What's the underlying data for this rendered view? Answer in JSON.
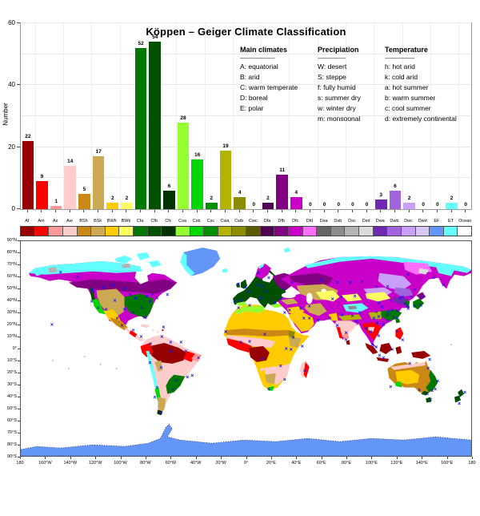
{
  "title": "Köppen – Geiger Climate Classification",
  "chart_data": {
    "type": "bar",
    "title": "Köppen – Geiger Climate Classification",
    "xlabel": "",
    "ylabel": "Number",
    "ylim": [
      0,
      60
    ],
    "yticks": [
      0,
      20,
      40,
      60
    ],
    "grid": true,
    "categories": [
      "Af",
      "Am",
      "As",
      "Aw",
      "BSh",
      "BSk",
      "BWh",
      "BWk",
      "Cfa",
      "Cfb",
      "Cfc",
      "Csa",
      "Csb",
      "Csc",
      "Cwa",
      "Cwb",
      "Cwc",
      "Dfa",
      "Dfb",
      "Dfc",
      "Dfd",
      "Dsa",
      "Dsb",
      "Dsc",
      "Dsd",
      "Dwa",
      "Dwb",
      "Dwc",
      "Dwd",
      "EF",
      "ET",
      "Ocean"
    ],
    "values": [
      22,
      9,
      1,
      14,
      5,
      17,
      2,
      2,
      52,
      54,
      6,
      28,
      16,
      2,
      19,
      4,
      0,
      2,
      11,
      4,
      0,
      0,
      0,
      0,
      0,
      3,
      6,
      2,
      0,
      0,
      2,
      0
    ],
    "colors": [
      "#960000",
      "#FF0000",
      "#FF9999",
      "#FFCCCC",
      "#CC8814",
      "#CCAA54",
      "#FFCC00",
      "#FFFF64",
      "#007800",
      "#005000",
      "#003200",
      "#96FF32",
      "#00D700",
      "#009000",
      "#B4B400",
      "#8C8C00",
      "#5A5A00",
      "#500050",
      "#820082",
      "#C800C8",
      "#FF6EFF",
      "#666666",
      "#8C8C8C",
      "#B4B4B4",
      "#DCDCDC",
      "#6E28B4",
      "#A064DC",
      "#C8A0FA",
      "#D8C8FA",
      "#6496FA",
      "#64FFFF",
      "#FFFFFF"
    ]
  },
  "legend": {
    "columns": [
      {
        "header": "Main climates",
        "divider": "--------------------",
        "items": [
          "A: equatorial",
          "B: arid",
          "C: warm temperate",
          "D: boreal",
          "E: polar"
        ]
      },
      {
        "header": "Precipiation",
        "divider": "----------------",
        "items": [
          "W: desert",
          "S: steppe",
          "f: fully humid",
          "s: summer dry",
          "w: winter dry",
          "m: monsoonal"
        ]
      },
      {
        "header": "Temperature",
        "divider": "-----------------",
        "items": [
          "h: hot arid",
          "k: cold arid",
          "a: hot summer",
          "b: warm summer",
          "c: cool summer",
          "d: extremely continental"
        ]
      }
    ]
  },
  "map": {
    "ocean_color": "#FFFFFF",
    "marker_color": "#1414F0",
    "marker_glyph": "×",
    "lat_labels": [
      "90°N",
      "80°N",
      "70°N",
      "60°N",
      "50°N",
      "40°N",
      "30°N",
      "20°N",
      "10°N",
      "0°",
      "10°S",
      "20°S",
      "30°S",
      "40°S",
      "50°S",
      "60°S",
      "70°S",
      "80°S",
      "90°S"
    ],
    "lon_labels": [
      "180",
      "160°W",
      "140°W",
      "120°W",
      "100°W",
      "80°W",
      "60°W",
      "40°W",
      "20°W",
      "0°",
      "20°E",
      "40°E",
      "60°E",
      "80°E",
      "100°E",
      "120°E",
      "140°E",
      "160°E",
      "180"
    ],
    "stations": [
      [
        91,
        64
      ],
      [
        89,
        76
      ],
      [
        97,
        84
      ],
      [
        107,
        86
      ],
      [
        118,
        75
      ],
      [
        130,
        86
      ],
      [
        141,
        90
      ],
      [
        151,
        84
      ],
      [
        155,
        96
      ],
      [
        162,
        76
      ],
      [
        171,
        72
      ],
      [
        158,
        69
      ],
      [
        144,
        72
      ],
      [
        137,
        67
      ],
      [
        104,
        58
      ],
      [
        90,
        61
      ],
      [
        116,
        55
      ],
      [
        130,
        60
      ],
      [
        165,
        67
      ],
      [
        184,
        67
      ],
      [
        50,
        39
      ],
      [
        71,
        45
      ],
      [
        39,
        105
      ],
      [
        127,
        106
      ],
      [
        121,
        97
      ],
      [
        141,
        112
      ],
      [
        151,
        120
      ],
      [
        179,
        108
      ],
      [
        163,
        129
      ],
      [
        177,
        120
      ],
      [
        188,
        127
      ],
      [
        201,
        127
      ],
      [
        188,
        139
      ],
      [
        207,
        138
      ],
      [
        223,
        147
      ],
      [
        215,
        169
      ],
      [
        209,
        171
      ],
      [
        191,
        186
      ],
      [
        176,
        159
      ],
      [
        162,
        153
      ],
      [
        171,
        184
      ],
      [
        168,
        196
      ],
      [
        176,
        216
      ],
      [
        195,
        175
      ],
      [
        268,
        76
      ],
      [
        276,
        75
      ],
      [
        286,
        63
      ],
      [
        282,
        58
      ],
      [
        273,
        54
      ],
      [
        298,
        55
      ],
      [
        303,
        57
      ],
      [
        308,
        63
      ],
      [
        301,
        72
      ],
      [
        319,
        78
      ],
      [
        326,
        73
      ],
      [
        340,
        52
      ],
      [
        330,
        60
      ],
      [
        311,
        46
      ],
      [
        298,
        40
      ],
      [
        257,
        114
      ],
      [
        276,
        127
      ],
      [
        287,
        126
      ],
      [
        306,
        117
      ],
      [
        333,
        135
      ],
      [
        342,
        121
      ],
      [
        353,
        132
      ],
      [
        339,
        136
      ],
      [
        326,
        157
      ],
      [
        331,
        174
      ],
      [
        311,
        186
      ],
      [
        356,
        163
      ],
      [
        303,
        148
      ],
      [
        273,
        84
      ],
      [
        287,
        81
      ],
      [
        331,
        90
      ],
      [
        337,
        87
      ],
      [
        351,
        85
      ],
      [
        362,
        97
      ],
      [
        355,
        97
      ],
      [
        373,
        100
      ],
      [
        362,
        82
      ],
      [
        391,
        73
      ],
      [
        402,
        70
      ],
      [
        388,
        97
      ],
      [
        403,
        93
      ],
      [
        397,
        106
      ],
      [
        408,
        115
      ],
      [
        421,
        101
      ],
      [
        416,
        94
      ],
      [
        408,
        124
      ],
      [
        377,
        49
      ],
      [
        397,
        52
      ],
      [
        413,
        52
      ],
      [
        428,
        51
      ],
      [
        446,
        57
      ],
      [
        460,
        57
      ],
      [
        486,
        42
      ],
      [
        494,
        61
      ],
      [
        490,
        70
      ],
      [
        530,
        55
      ],
      [
        518,
        46
      ],
      [
        464,
        75
      ],
      [
        453,
        83
      ],
      [
        446,
        89
      ],
      [
        449,
        95
      ],
      [
        443,
        97
      ],
      [
        460,
        93
      ],
      [
        461,
        89
      ],
      [
        466,
        87
      ],
      [
        472,
        88
      ],
      [
        468,
        96
      ],
      [
        460,
        100
      ],
      [
        455,
        105
      ],
      [
        472,
        97
      ],
      [
        482,
        79
      ],
      [
        485,
        82
      ],
      [
        486,
        85
      ],
      [
        494,
        82
      ],
      [
        502,
        81
      ],
      [
        504,
        70
      ],
      [
        479,
        70
      ],
      [
        476,
        72
      ],
      [
        449,
        78
      ],
      [
        425,
        90
      ],
      [
        419,
        69
      ],
      [
        439,
        114
      ],
      [
        447,
        103
      ],
      [
        449,
        119
      ],
      [
        433,
        110
      ],
      [
        441,
        130
      ],
      [
        446,
        133
      ],
      [
        450,
        144
      ],
      [
        455,
        147
      ],
      [
        472,
        113
      ],
      [
        479,
        124
      ],
      [
        466,
        136
      ],
      [
        513,
        149
      ],
      [
        464,
        183
      ],
      [
        500,
        187
      ],
      [
        510,
        192
      ],
      [
        520,
        186
      ],
      [
        523,
        176
      ],
      [
        516,
        188
      ],
      [
        488,
        154
      ],
      [
        511,
        160
      ],
      [
        514,
        199
      ],
      [
        557,
        190
      ],
      [
        550,
        204
      ]
    ]
  }
}
